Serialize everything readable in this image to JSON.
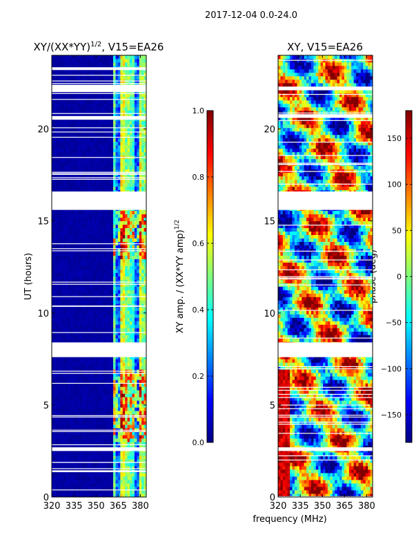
{
  "chart_data": [
    {
      "type": "heatmap",
      "suptitle": "2017-12-04 0.0-24.0",
      "title": "XY/(XX*YY)^1/2, V15=EA26",
      "title_main": "XY/(XX*YY)",
      "title_sup": "1/2",
      "title_tail": ", V15=EA26",
      "xlabel": "",
      "ylabel": "UT (hours)",
      "xlim": [
        320,
        384
      ],
      "ylim": [
        0,
        24
      ],
      "xticks": [
        "320",
        "335",
        "350",
        "365",
        "380"
      ],
      "xtick_values": [
        320,
        335,
        350,
        365,
        380
      ],
      "yticks": [
        "0",
        "5",
        "10",
        "15",
        "20"
      ],
      "ytick_values": [
        0,
        5,
        10,
        15,
        20
      ],
      "colormap": "jet",
      "colorbar": {
        "label_main": "XY amp. / (XX*YY amp)",
        "label_sup": "1/2",
        "range": [
          0.0,
          1.0
        ],
        "ticks": [
          "0.0",
          "0.2",
          "0.4",
          "0.6",
          "0.8",
          "1.0"
        ],
        "tick_values": [
          0,
          0.2,
          0.4,
          0.6,
          0.8,
          1.0
        ]
      },
      "blank_hour_ranges": [
        [
          15.6,
          16.6
        ],
        [
          7.6,
          8.4
        ],
        [
          2.5,
          2.7
        ],
        [
          1.35,
          1.45
        ],
        [
          20.5,
          20.7
        ],
        [
          22.0,
          22.4
        ],
        [
          23.2,
          23.35
        ]
      ]
    },
    {
      "type": "heatmap",
      "title": "XY, V15=EA26",
      "xlabel": "frequency (MHz)",
      "ylabel": "",
      "xlim": [
        320,
        384
      ],
      "ylim": [
        0,
        24
      ],
      "xticks": [
        "320",
        "335",
        "350",
        "365",
        "380"
      ],
      "xtick_values": [
        320,
        335,
        350,
        365,
        380
      ],
      "yticks": [
        "0",
        "5",
        "10",
        "15",
        "20"
      ],
      "ytick_values": [
        0,
        5,
        10,
        15,
        20
      ],
      "colormap": "jet",
      "colorbar": {
        "label": "phase (deg)",
        "range": [
          -180,
          180
        ],
        "ticks": [
          "−150",
          "−100",
          "−50",
          "0",
          "50",
          "100",
          "150"
        ],
        "tick_values": [
          -150,
          -100,
          -50,
          0,
          50,
          100,
          150
        ]
      },
      "blank_hour_ranges": [
        [
          15.6,
          16.6
        ],
        [
          7.6,
          8.4
        ],
        [
          2.5,
          2.7
        ],
        [
          20.6,
          20.8
        ],
        [
          22.1,
          22.3
        ]
      ]
    }
  ]
}
